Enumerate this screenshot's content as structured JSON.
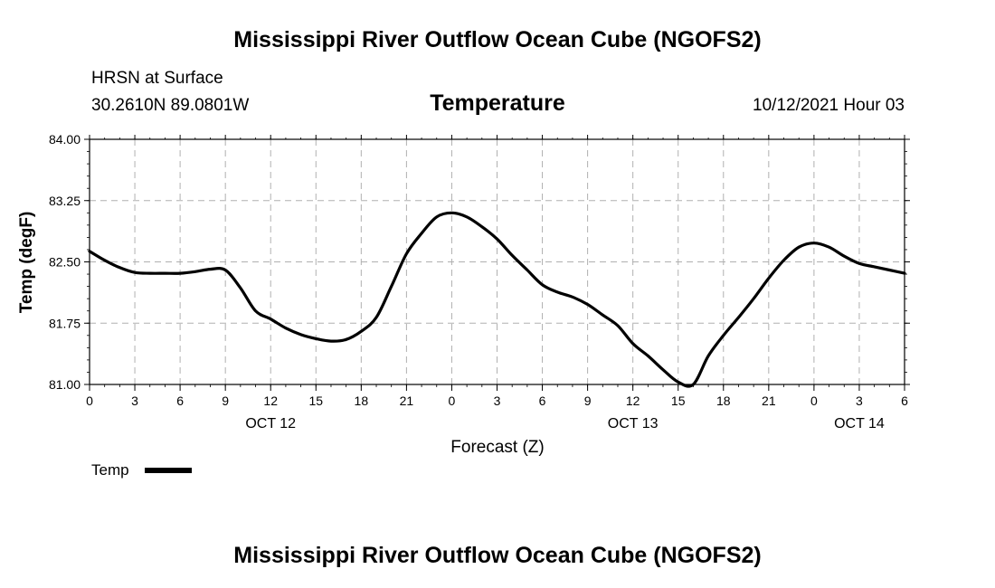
{
  "header": {
    "title": "Mississippi River Outflow Ocean Cube (NGOFS2)",
    "station": "HRSN at Surface",
    "coords": "30.2610N  89.0801W",
    "variable": "Temperature",
    "datetime": "10/12/2021 Hour 03"
  },
  "footer": {
    "title": "Mississippi River Outflow Ocean Cube (NGOFS2)"
  },
  "colors": {
    "line": "#000000",
    "grid": "#b0b0b0"
  },
  "chart_data": {
    "type": "line",
    "title": "Temperature",
    "xlabel": "Forecast (Z)",
    "ylabel": "Temp (degF)",
    "xlim": [
      0,
      54
    ],
    "ylim": [
      81.0,
      84.0
    ],
    "grid": true,
    "legend_placement": "bottom-left",
    "y_ticks": [
      {
        "v": 81.0,
        "label": "81.00"
      },
      {
        "v": 81.75,
        "label": "81.75"
      },
      {
        "v": 82.5,
        "label": "82.50"
      },
      {
        "v": 83.25,
        "label": "83.25"
      },
      {
        "v": 84.0,
        "label": "84.00"
      }
    ],
    "x_ticks": [
      {
        "v": 0,
        "label": "0"
      },
      {
        "v": 3,
        "label": "3"
      },
      {
        "v": 6,
        "label": "6"
      },
      {
        "v": 9,
        "label": "9"
      },
      {
        "v": 12,
        "label": "12"
      },
      {
        "v": 15,
        "label": "15"
      },
      {
        "v": 18,
        "label": "18"
      },
      {
        "v": 21,
        "label": "21"
      },
      {
        "v": 24,
        "label": "0"
      },
      {
        "v": 27,
        "label": "3"
      },
      {
        "v": 30,
        "label": "6"
      },
      {
        "v": 33,
        "label": "9"
      },
      {
        "v": 36,
        "label": "12"
      },
      {
        "v": 39,
        "label": "15"
      },
      {
        "v": 42,
        "label": "18"
      },
      {
        "v": 45,
        "label": "21"
      },
      {
        "v": 48,
        "label": "0"
      },
      {
        "v": 51,
        "label": "3"
      },
      {
        "v": 54,
        "label": "6"
      }
    ],
    "day_labels": [
      {
        "v": 12,
        "label": "OCT 12"
      },
      {
        "v": 36,
        "label": "OCT 13"
      },
      {
        "v": 51,
        "label": "OCT 14"
      }
    ],
    "series": [
      {
        "name": "Temp",
        "x": [
          0,
          1,
          2,
          3,
          4,
          5,
          6,
          7,
          8,
          9,
          10,
          11,
          12,
          13,
          14,
          15,
          16,
          17,
          18,
          19,
          20,
          21,
          22,
          23,
          24,
          25,
          26,
          27,
          28,
          29,
          30,
          31,
          32,
          33,
          34,
          35,
          36,
          37,
          38,
          39,
          40,
          41,
          42,
          43,
          44,
          45,
          46,
          47,
          48,
          49,
          50,
          51,
          52,
          53,
          54
        ],
        "values": [
          82.63,
          82.52,
          82.43,
          82.37,
          82.36,
          82.36,
          82.36,
          82.38,
          82.41,
          82.4,
          82.18,
          81.9,
          81.8,
          81.69,
          81.61,
          81.56,
          81.53,
          81.55,
          81.65,
          81.82,
          82.2,
          82.6,
          82.85,
          83.05,
          83.1,
          83.05,
          82.93,
          82.78,
          82.58,
          82.4,
          82.22,
          82.13,
          82.07,
          81.98,
          81.85,
          81.72,
          81.5,
          81.35,
          81.18,
          81.03,
          81.0,
          81.35,
          81.6,
          81.82,
          82.05,
          82.3,
          82.52,
          82.68,
          82.73,
          82.68,
          82.57,
          82.48,
          82.44,
          82.4,
          82.36
        ]
      }
    ]
  }
}
